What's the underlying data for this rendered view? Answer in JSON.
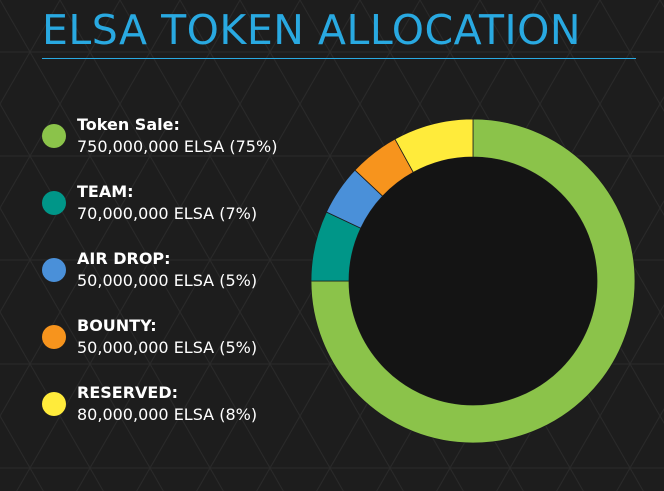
{
  "header": {
    "title": "ELSA TOKEN ALLOCATION"
  },
  "colors": {
    "accent": "#29a9e1",
    "background": "#1d1d1d"
  },
  "chart_data": {
    "type": "pie",
    "title": "ELSA TOKEN ALLOCATION",
    "donut": true,
    "legend_position": "left",
    "categories": [
      "Token Sale:",
      "TEAM:",
      "AIR DROP:",
      "BOUNTY:",
      "RESERVED:"
    ],
    "values": [
      750000000,
      70000000,
      50000000,
      50000000,
      80000000
    ],
    "percentages": [
      75,
      7,
      5,
      5,
      8
    ],
    "value_labels": [
      "750,000,000 ELSA (75%)",
      "70,000,000 ELSA (7%)",
      "50,000,000 ELSA (5%)",
      "50,000,000 ELSA (5%)",
      "80,000,000 ELSA (8%)"
    ],
    "colors": [
      "#8bc34a",
      "#009688",
      "#4a90d9",
      "#f7941d",
      "#ffeb3b"
    ]
  }
}
